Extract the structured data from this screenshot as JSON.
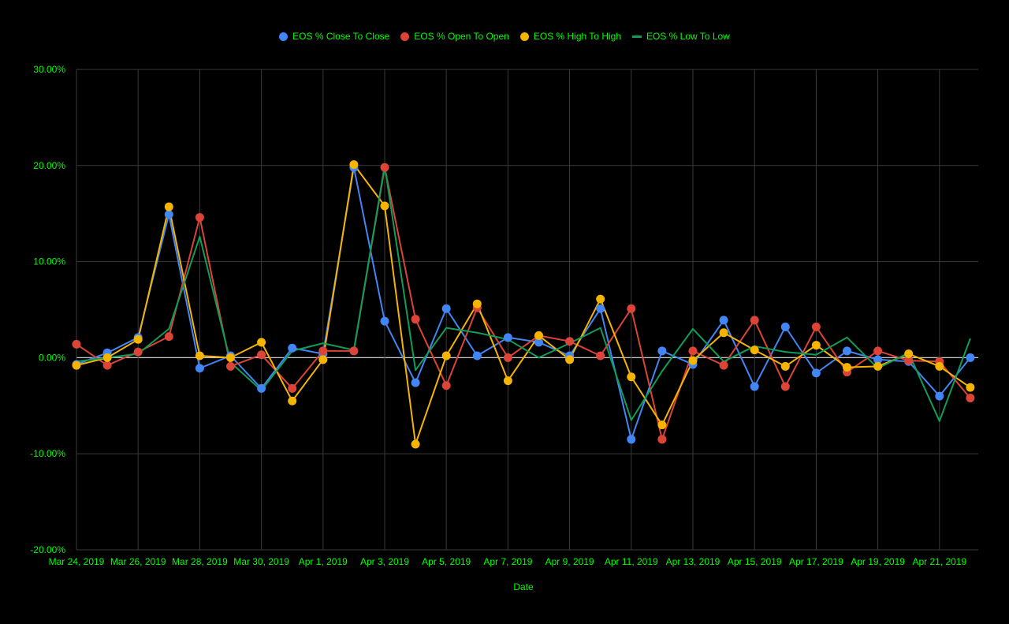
{
  "chart_data": {
    "type": "line",
    "title": "",
    "xlabel": "Date",
    "ylabel": "",
    "ylim": [
      -20,
      30
    ],
    "y_ticks": [
      "30.00%",
      "20.00%",
      "10.00%",
      "0.00%",
      "-10.00%",
      "-20.00%"
    ],
    "y_tick_values": [
      30,
      20,
      10,
      0,
      -10,
      -20
    ],
    "x_tick_labels": [
      "Mar 24, 2019",
      "Mar 26, 2019",
      "Mar 28, 2019",
      "Mar 30, 2019",
      "Apr 1, 2019",
      "Apr 3, 2019",
      "Apr 5, 2019",
      "Apr 7, 2019",
      "Apr 9, 2019",
      "Apr 11, 2019",
      "Apr 13, 2019",
      "Apr 15, 2019",
      "Apr 17, 2019",
      "Apr 19, 2019",
      "Apr 21, 2019"
    ],
    "x": [
      "Mar 24, 2019",
      "Mar 25, 2019",
      "Mar 26, 2019",
      "Mar 27, 2019",
      "Mar 28, 2019",
      "Mar 29, 2019",
      "Mar 30, 2019",
      "Mar 31, 2019",
      "Apr 1, 2019",
      "Apr 2, 2019",
      "Apr 3, 2019",
      "Apr 4, 2019",
      "Apr 5, 2019",
      "Apr 6, 2019",
      "Apr 7, 2019",
      "Apr 8, 2019",
      "Apr 9, 2019",
      "Apr 10, 2019",
      "Apr 11, 2019",
      "Apr 12, 2019",
      "Apr 13, 2019",
      "Apr 14, 2019",
      "Apr 15, 2019",
      "Apr 16, 2019",
      "Apr 17, 2019",
      "Apr 18, 2019",
      "Apr 19, 2019",
      "Apr 20, 2019",
      "Apr 21, 2019",
      "Apr 22, 2019"
    ],
    "grid": true,
    "legend_position": "top",
    "series": [
      {
        "name": "EOS % Close To Close",
        "color": "#4285f4",
        "marker": "circle",
        "values": [
          -0.7,
          0.5,
          2.1,
          14.9,
          -1.1,
          0.2,
          -3.2,
          1.0,
          0.4,
          19.8,
          3.8,
          -2.6,
          5.1,
          0.2,
          2.1,
          1.6,
          0.2,
          5.1,
          -8.5,
          0.7,
          -0.7,
          3.9,
          -3.0,
          3.2,
          -1.6,
          0.7,
          -0.2,
          -0.4,
          -4.0,
          0.0
        ]
      },
      {
        "name": "EOS % Open To Open",
        "color": "#db4437",
        "marker": "circle",
        "values": [
          1.4,
          -0.8,
          0.6,
          2.2,
          14.6,
          -0.9,
          0.3,
          -3.2,
          0.7,
          0.7,
          19.8,
          4.0,
          -2.9,
          5.2,
          0.0,
          2.3,
          1.7,
          0.2,
          5.1,
          -8.5,
          0.7,
          -0.8,
          3.9,
          -3.0,
          3.2,
          -1.5,
          0.7,
          -0.3,
          -0.4,
          -4.2
        ]
      },
      {
        "name": "EOS % High To High",
        "color": "#f4b400",
        "marker": "circle",
        "values": [
          -0.8,
          0.0,
          1.9,
          15.7,
          0.2,
          0.0,
          1.6,
          -4.5,
          -0.2,
          20.1,
          15.8,
          -9.0,
          0.2,
          5.6,
          -2.4,
          2.3,
          -0.2,
          6.1,
          -2.0,
          -7.0,
          -0.3,
          2.6,
          0.8,
          -0.9,
          1.3,
          -1.0,
          -0.9,
          0.4,
          -0.9,
          -3.1
        ]
      },
      {
        "name": "EOS % Low To Low",
        "color": "#0f9d58",
        "marker": "none",
        "values": [
          -0.4,
          0.0,
          0.4,
          3.0,
          12.6,
          -0.5,
          -3.4,
          0.7,
          1.5,
          0.8,
          20.0,
          -1.3,
          3.1,
          2.6,
          1.9,
          0.0,
          1.5,
          3.1,
          -6.5,
          -1.4,
          3.0,
          -0.4,
          1.2,
          0.6,
          0.3,
          2.1,
          -1.1,
          0.5,
          -6.6,
          2.0
        ]
      }
    ]
  },
  "colors": {
    "background": "#000000",
    "text": "#00ff00",
    "grid": "#3a3a3a",
    "zero_line": "#cccccc"
  }
}
